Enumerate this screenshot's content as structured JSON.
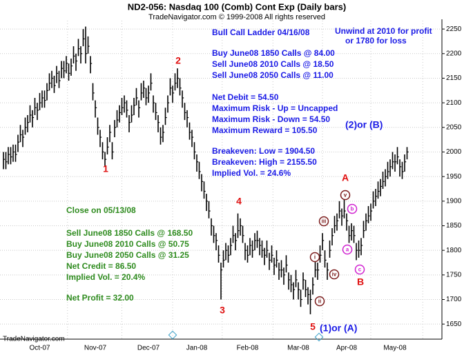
{
  "chart_data": {
    "type": "ohlc",
    "title": "ND2-056:  Nasdaq 100 (Comb) Cont Exp  (Daily bars)",
    "subtitle": "TradeNavigator.com © 1999-2008 All rights reserved",
    "footer": "TradeNavigator.com",
    "color": "#000000",
    "grid": true,
    "ylim": [
      1625,
      2267
    ],
    "yticks": [
      1650,
      1700,
      1750,
      1800,
      1850,
      1900,
      1950,
      2000,
      2050,
      2100,
      2150,
      2200,
      2250
    ],
    "categories": [
      null,
      null,
      null,
      null,
      null,
      null,
      null,
      null,
      null,
      null,
      null,
      null,
      null,
      null,
      null,
      "Oct-07",
      null,
      null,
      null,
      null,
      null,
      null,
      null,
      null,
      null,
      null,
      null,
      null,
      null,
      null,
      null,
      null,
      null,
      null,
      null,
      null,
      null,
      null,
      "Nov-07",
      null,
      null,
      null,
      null,
      null,
      null,
      null,
      null,
      null,
      null,
      null,
      null,
      null,
      null,
      null,
      null,
      null,
      null,
      null,
      null,
      null,
      "Dec-07",
      null,
      null,
      null,
      null,
      null,
      null,
      null,
      null,
      null,
      null,
      null,
      null,
      null,
      null,
      null,
      null,
      null,
      null,
      null,
      "Jan-08",
      null,
      null,
      null,
      null,
      null,
      null,
      null,
      null,
      null,
      null,
      null,
      null,
      null,
      null,
      null,
      null,
      null,
      null,
      null,
      null,
      "Feb-08",
      null,
      null,
      null,
      null,
      null,
      null,
      null,
      null,
      null,
      null,
      null,
      null,
      null,
      null,
      null,
      null,
      null,
      null,
      null,
      null,
      "Mar-08",
      null,
      null,
      null,
      null,
      null,
      null,
      null,
      null,
      null,
      null,
      null,
      null,
      null,
      null,
      null,
      null,
      null,
      null,
      null,
      "Apr-08",
      null,
      null,
      null,
      null,
      null,
      null,
      null,
      null,
      null,
      null,
      null,
      null,
      null,
      null,
      null,
      null,
      null,
      null,
      null,
      "May-08",
      null,
      null,
      null,
      null,
      null
    ],
    "high": [
      2000,
      2000,
      2010,
      2010,
      2015,
      2015,
      2035,
      2055,
      2045,
      2070,
      2075,
      2095,
      2085,
      2110,
      2100,
      2120,
      2125,
      2125,
      2140,
      2160,
      2165,
      2155,
      2175,
      2165,
      2185,
      2185,
      2195,
      2180,
      2190,
      2215,
      2200,
      2230,
      2215,
      2250,
      2255,
      2235,
      2195,
      2140,
      2105,
      2070,
      2045,
      2020,
      2000,
      2030,
      2055,
      2020,
      2065,
      2085,
      2095,
      2110,
      2115,
      2105,
      2075,
      2095,
      2110,
      2130,
      2105,
      2140,
      2145,
      2130,
      2135,
      2160,
      2115,
      2100,
      2075,
      2050,
      2055,
      2090,
      2115,
      2150,
      2135,
      2160,
      2170,
      2150,
      2125,
      2100,
      2085,
      2060,
      2045,
      2020,
      1995,
      1980,
      1955,
      1940,
      1915,
      1900,
      1865,
      1850,
      1835,
      1810,
      1775,
      1800,
      1815,
      1810,
      1825,
      1850,
      1835,
      1875,
      1865,
      1850,
      1815,
      1810,
      1825,
      1820,
      1835,
      1840,
      1825,
      1820,
      1805,
      1820,
      1795,
      1810,
      1785,
      1800,
      1775,
      1780,
      1765,
      1790,
      1755,
      1750,
      1735,
      1760,
      1735,
      1720,
      1755,
      1740,
      1725,
      1720,
      1745,
      1780,
      1775,
      1810,
      1835,
      1800,
      1775,
      1820,
      1845,
      1870,
      1875,
      1900,
      1885,
      1905,
      1875,
      1850,
      1855,
      1850,
      1815,
      1820,
      1825,
      1860,
      1875,
      1890,
      1895,
      1920,
      1925,
      1940,
      1945,
      1960,
      1965,
      1980,
      1985,
      2000,
      1995,
      2010,
      1985,
      1980,
      1995,
      2010
    ],
    "low": [
      1965,
      1965,
      1975,
      1975,
      1980,
      1980,
      2000,
      2020,
      2010,
      2035,
      2040,
      2060,
      2050,
      2075,
      2065,
      2085,
      2090,
      2090,
      2105,
      2125,
      2130,
      2120,
      2140,
      2130,
      2150,
      2150,
      2160,
      2145,
      2155,
      2180,
      2165,
      2195,
      2180,
      2215,
      2180,
      2200,
      2160,
      2105,
      2070,
      2035,
      2010,
      1985,
      1970,
      1995,
      2020,
      1985,
      2030,
      2050,
      2060,
      2075,
      2080,
      2070,
      2040,
      2060,
      2075,
      2095,
      2070,
      2105,
      2110,
      2095,
      2100,
      2125,
      2080,
      2065,
      2040,
      2015,
      2020,
      2055,
      2080,
      2115,
      2100,
      2125,
      2130,
      2115,
      2090,
      2065,
      2050,
      2025,
      2010,
      1985,
      1960,
      1945,
      1920,
      1905,
      1880,
      1865,
      1830,
      1815,
      1800,
      1775,
      1700,
      1765,
      1780,
      1775,
      1790,
      1815,
      1800,
      1825,
      1830,
      1815,
      1780,
      1775,
      1790,
      1785,
      1800,
      1805,
      1790,
      1785,
      1770,
      1785,
      1760,
      1775,
      1750,
      1765,
      1740,
      1745,
      1730,
      1755,
      1720,
      1715,
      1700,
      1725,
      1700,
      1685,
      1720,
      1705,
      1690,
      1670,
      1710,
      1745,
      1740,
      1775,
      1800,
      1765,
      1740,
      1785,
      1810,
      1835,
      1840,
      1865,
      1850,
      1865,
      1840,
      1815,
      1820,
      1815,
      1780,
      1785,
      1790,
      1825,
      1840,
      1855,
      1860,
      1885,
      1890,
      1905,
      1910,
      1925,
      1930,
      1945,
      1950,
      1965,
      1960,
      1975,
      1950,
      1945,
      1960,
      1985
    ],
    "close": [
      1985,
      1980,
      1995,
      1990,
      2000,
      1995,
      2020,
      2035,
      2030,
      2050,
      2060,
      2075,
      2070,
      2090,
      2085,
      2100,
      2110,
      2105,
      2125,
      2140,
      2150,
      2135,
      2160,
      2145,
      2170,
      2165,
      2180,
      2160,
      2175,
      2195,
      2185,
      2210,
      2200,
      2230,
      2200,
      2215,
      2180,
      2120,
      2090,
      2050,
      2030,
      2000,
      1985,
      2010,
      2040,
      2000,
      2050,
      2065,
      2080,
      2090,
      2100,
      2085,
      2060,
      2075,
      2095,
      2110,
      2090,
      2120,
      2130,
      2110,
      2120,
      2140,
      2100,
      2080,
      2060,
      2030,
      2040,
      2070,
      2100,
      2130,
      2120,
      2140,
      2150,
      2130,
      2110,
      2080,
      2070,
      2040,
      2030,
      2000,
      1980,
      1960,
      1940,
      1920,
      1900,
      1880,
      1850,
      1830,
      1820,
      1790,
      1760,
      1780,
      1800,
      1790,
      1810,
      1830,
      1820,
      1840,
      1850,
      1830,
      1800,
      1790,
      1810,
      1800,
      1820,
      1820,
      1810,
      1800,
      1790,
      1800,
      1780,
      1790,
      1770,
      1780,
      1760,
      1760,
      1750,
      1770,
      1740,
      1730,
      1720,
      1740,
      1720,
      1700,
      1740,
      1720,
      1710,
      1700,
      1730,
      1760,
      1760,
      1790,
      1820,
      1780,
      1760,
      1800,
      1830,
      1850,
      1860,
      1880,
      1870,
      1880,
      1860,
      1830,
      1840,
      1830,
      1800,
      1800,
      1810,
      1840,
      1860,
      1870,
      1880,
      1900,
      1910,
      1920,
      1930,
      1940,
      1950,
      1960,
      1970,
      1980,
      1980,
      1990,
      1970,
      1960,
      1980,
      2000
    ],
    "trade_text": [
      "Bull Call Ladder 04/16/08",
      "Buy June08 1850 Calls @ 84.00",
      "Sell June08 2010 Calls @ 18.50",
      "Sell June08 2050 Calls @ 11.00",
      "Net Debit = 54.50",
      "Maximum Risk - Up = Uncapped",
      "Maximum Risk - Down = 54.50",
      "Maximum Reward = 105.50",
      "Breakeven: Low = 1904.50",
      "Breakeven: High = 2155.50",
      "Implied Vol. = 24.6%",
      "Unwind at 2010 for profit",
      "or 1780 for loss"
    ],
    "close_text": [
      "Close on 05/13/08",
      "Sell June08 1850 Calls @ 168.50",
      "Buy June08 2010 Calls @ 50.75",
      "Buy June08 2050 Calls @ 31.25",
      "Net Credit = 86.50",
      "Implied Vol. = 20.4%",
      "Net Profit = 32.00"
    ],
    "wave_labels": [
      "1",
      "2",
      "3",
      "4",
      "5",
      "A",
      "B"
    ],
    "alt_labels": [
      "(2)or (B)",
      "(1)or (A)"
    ],
    "subwaves": [
      "i",
      "ii",
      "iii",
      "iv",
      "v"
    ],
    "abc": [
      "a",
      "b",
      "c"
    ]
  }
}
